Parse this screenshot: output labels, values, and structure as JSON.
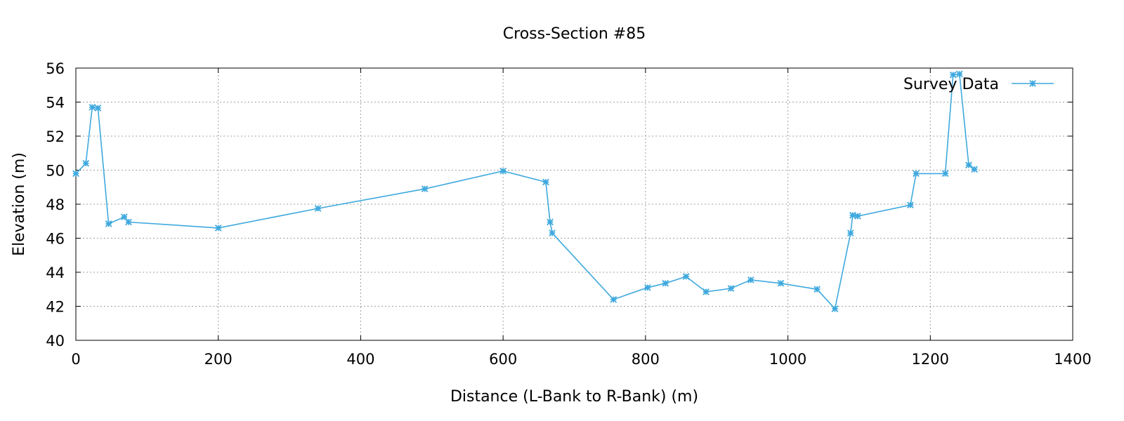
{
  "chart_data": {
    "type": "line",
    "title": "Cross-Section #85",
    "xlabel": "Distance (L-Bank to R-Bank) (m)",
    "ylabel": "Elevation (m)",
    "xlim": [
      0,
      1400
    ],
    "ylim": [
      40,
      56
    ],
    "xticks": [
      0,
      200,
      400,
      600,
      800,
      1000,
      1200,
      1400
    ],
    "yticks": [
      40,
      42,
      44,
      46,
      48,
      50,
      52,
      54,
      56
    ],
    "grid": true,
    "legend_position": "top-right",
    "series": [
      {
        "name": "Survey Data",
        "color": "#3fa9de",
        "marker": "asterisk",
        "x": [
          0,
          14,
          23,
          31,
          46,
          68,
          74,
          200,
          340,
          490,
          600,
          660,
          666,
          669,
          755,
          803,
          828,
          857,
          885,
          920,
          948,
          990,
          1041,
          1066,
          1088,
          1091,
          1098,
          1172,
          1180,
          1221,
          1232,
          1241,
          1254,
          1262
        ],
        "y": [
          49.8,
          50.4,
          53.7,
          53.65,
          46.85,
          47.25,
          46.95,
          46.6,
          47.75,
          48.9,
          49.95,
          49.3,
          46.95,
          46.3,
          42.4,
          43.1,
          43.35,
          43.75,
          42.85,
          43.05,
          43.55,
          43.35,
          43.0,
          41.85,
          46.3,
          47.35,
          47.3,
          47.95,
          49.8,
          49.8,
          55.6,
          55.65,
          50.3,
          50.05
        ]
      }
    ]
  }
}
